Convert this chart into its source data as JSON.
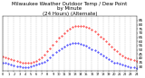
{
  "title": "Milwaukee Weather Outdoor Temp / Dew Point\nby Minute\n(24 Hours) (Alternate)",
  "title_fontsize": 4.0,
  "bg_color": "#ffffff",
  "plot_bg_color": "#ffffff",
  "grid_color": "#aaaaaa",
  "tick_color": "#000000",
  "label_color": "#000000",
  "temp_color": "#ff0000",
  "dew_color": "#0000ff",
  "ylim": [
    25,
    90
  ],
  "yticks": [
    30,
    35,
    40,
    45,
    50,
    55,
    60,
    65,
    70,
    75,
    80,
    85
  ],
  "xlim": [
    0,
    1440
  ],
  "xtick_positions": [
    0,
    60,
    120,
    180,
    240,
    300,
    360,
    420,
    480,
    540,
    600,
    660,
    720,
    780,
    840,
    900,
    960,
    1020,
    1080,
    1140,
    1200,
    1260,
    1320,
    1380,
    1440
  ],
  "xtick_labels": [
    "0",
    "1",
    "2",
    "3",
    "4",
    "5",
    "6",
    "7",
    "8",
    "9",
    "10",
    "11",
    "12",
    "13",
    "14",
    "15",
    "16",
    "17",
    "18",
    "19",
    "20",
    "21",
    "22",
    "23",
    "24"
  ],
  "temp_x": [
    0,
    30,
    60,
    90,
    120,
    150,
    180,
    210,
    240,
    270,
    300,
    330,
    360,
    390,
    420,
    450,
    480,
    510,
    540,
    570,
    600,
    630,
    660,
    690,
    720,
    750,
    780,
    810,
    840,
    870,
    900,
    930,
    960,
    990,
    1020,
    1050,
    1080,
    1110,
    1140,
    1170,
    1200,
    1230,
    1260,
    1290,
    1320,
    1350,
    1380,
    1410,
    1440
  ],
  "temp_y": [
    42,
    41,
    40,
    39,
    38,
    37,
    36,
    35,
    34,
    34,
    35,
    36,
    37,
    39,
    41,
    44,
    48,
    52,
    56,
    60,
    64,
    67,
    70,
    73,
    75,
    77,
    78,
    79,
    79,
    78,
    77,
    76,
    74,
    72,
    69,
    66,
    63,
    60,
    57,
    54,
    51,
    48,
    45,
    43,
    41,
    40,
    39,
    38,
    37
  ],
  "dew_x": [
    0,
    30,
    60,
    90,
    120,
    150,
    180,
    210,
    240,
    270,
    300,
    330,
    360,
    390,
    420,
    450,
    480,
    510,
    540,
    570,
    600,
    630,
    660,
    690,
    720,
    750,
    780,
    810,
    840,
    870,
    900,
    930,
    960,
    990,
    1020,
    1050,
    1080,
    1110,
    1140,
    1170,
    1200,
    1230,
    1260,
    1290,
    1320,
    1350,
    1380,
    1410,
    1440
  ],
  "dew_y": [
    35,
    34,
    33,
    32,
    31,
    30,
    30,
    29,
    29,
    29,
    30,
    31,
    32,
    33,
    34,
    36,
    38,
    41,
    44,
    47,
    50,
    52,
    54,
    56,
    57,
    58,
    58,
    58,
    57,
    56,
    55,
    53,
    51,
    49,
    47,
    45,
    43,
    41,
    39,
    37,
    35,
    34,
    33,
    32,
    31,
    30,
    29,
    29,
    28
  ]
}
